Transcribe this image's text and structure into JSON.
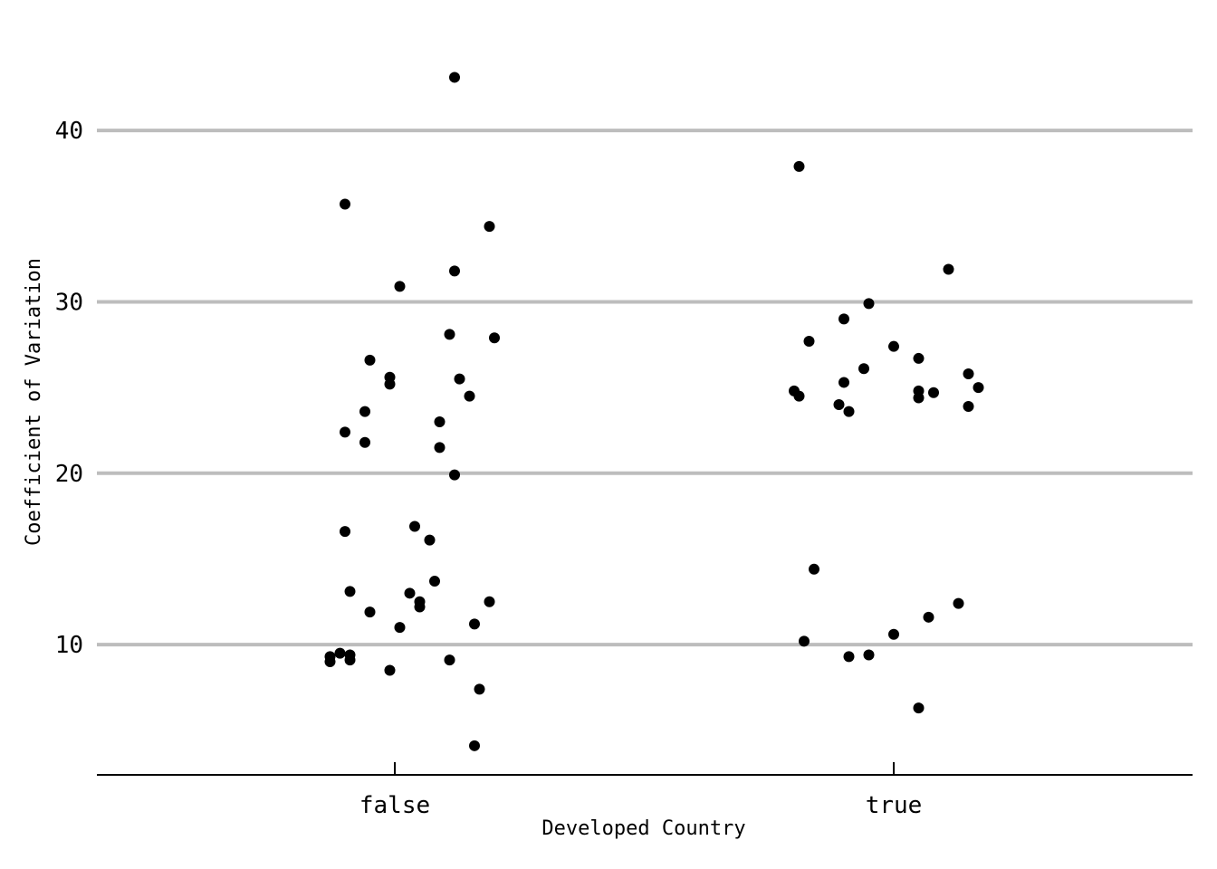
{
  "chart_data": {
    "type": "scatter",
    "subtype": "strip-jitter",
    "xlabel": "Developed Country",
    "ylabel": "Coefficient of Variation",
    "categories": [
      "false",
      "true"
    ],
    "ylim": [
      2.4,
      45.5
    ],
    "yticks": [
      10,
      20,
      30,
      40
    ],
    "grid": "horizontal",
    "point_color": "#000000",
    "grid_color": "#bdbdbd",
    "series": [
      {
        "category": "false",
        "points": [
          {
            "jitter": 0.12,
            "y": 43.1
          },
          {
            "jitter": -0.1,
            "y": 35.7
          },
          {
            "jitter": 0.19,
            "y": 34.4
          },
          {
            "jitter": 0.12,
            "y": 31.8
          },
          {
            "jitter": 0.01,
            "y": 30.9
          },
          {
            "jitter": 0.11,
            "y": 28.1
          },
          {
            "jitter": 0.2,
            "y": 27.9
          },
          {
            "jitter": -0.05,
            "y": 26.6
          },
          {
            "jitter": -0.01,
            "y": 25.6
          },
          {
            "jitter": -0.01,
            "y": 25.2
          },
          {
            "jitter": 0.13,
            "y": 25.5
          },
          {
            "jitter": 0.15,
            "y": 24.5
          },
          {
            "jitter": -0.06,
            "y": 23.6
          },
          {
            "jitter": 0.09,
            "y": 23.0
          },
          {
            "jitter": -0.1,
            "y": 22.4
          },
          {
            "jitter": -0.06,
            "y": 21.8
          },
          {
            "jitter": 0.09,
            "y": 21.5
          },
          {
            "jitter": 0.12,
            "y": 19.9
          },
          {
            "jitter": 0.04,
            "y": 16.9
          },
          {
            "jitter": 0.07,
            "y": 16.1
          },
          {
            "jitter": -0.1,
            "y": 16.6
          },
          {
            "jitter": 0.08,
            "y": 13.7
          },
          {
            "jitter": -0.09,
            "y": 13.1
          },
          {
            "jitter": 0.03,
            "y": 13.0
          },
          {
            "jitter": 0.05,
            "y": 12.5
          },
          {
            "jitter": 0.05,
            "y": 12.2
          },
          {
            "jitter": 0.19,
            "y": 12.5
          },
          {
            "jitter": -0.05,
            "y": 11.9
          },
          {
            "jitter": 0.16,
            "y": 11.2
          },
          {
            "jitter": 0.01,
            "y": 11.0
          },
          {
            "jitter": -0.11,
            "y": 9.5
          },
          {
            "jitter": -0.09,
            "y": 9.4
          },
          {
            "jitter": -0.13,
            "y": 9.3
          },
          {
            "jitter": -0.13,
            "y": 9.0
          },
          {
            "jitter": -0.09,
            "y": 9.1
          },
          {
            "jitter": 0.11,
            "y": 9.1
          },
          {
            "jitter": -0.01,
            "y": 8.5
          },
          {
            "jitter": 0.17,
            "y": 7.4
          },
          {
            "jitter": 0.16,
            "y": 4.1
          }
        ]
      },
      {
        "category": "true",
        "points": [
          {
            "jitter": -0.19,
            "y": 37.9
          },
          {
            "jitter": 0.11,
            "y": 31.9
          },
          {
            "jitter": -0.05,
            "y": 29.9
          },
          {
            "jitter": -0.1,
            "y": 29.0
          },
          {
            "jitter": -0.17,
            "y": 27.7
          },
          {
            "jitter": 0.0,
            "y": 27.4
          },
          {
            "jitter": 0.05,
            "y": 26.7
          },
          {
            "jitter": -0.06,
            "y": 26.1
          },
          {
            "jitter": 0.15,
            "y": 25.8
          },
          {
            "jitter": -0.1,
            "y": 25.3
          },
          {
            "jitter": 0.17,
            "y": 25.0
          },
          {
            "jitter": -0.2,
            "y": 24.8
          },
          {
            "jitter": -0.19,
            "y": 24.5
          },
          {
            "jitter": 0.05,
            "y": 24.8
          },
          {
            "jitter": 0.08,
            "y": 24.7
          },
          {
            "jitter": 0.05,
            "y": 24.4
          },
          {
            "jitter": -0.11,
            "y": 24.0
          },
          {
            "jitter": 0.15,
            "y": 23.9
          },
          {
            "jitter": -0.09,
            "y": 23.6
          },
          {
            "jitter": -0.16,
            "y": 14.4
          },
          {
            "jitter": 0.13,
            "y": 12.4
          },
          {
            "jitter": 0.07,
            "y": 11.6
          },
          {
            "jitter": 0.0,
            "y": 10.6
          },
          {
            "jitter": -0.18,
            "y": 10.2
          },
          {
            "jitter": -0.05,
            "y": 9.4
          },
          {
            "jitter": -0.09,
            "y": 9.3
          },
          {
            "jitter": 0.05,
            "y": 6.3
          }
        ]
      }
    ]
  }
}
